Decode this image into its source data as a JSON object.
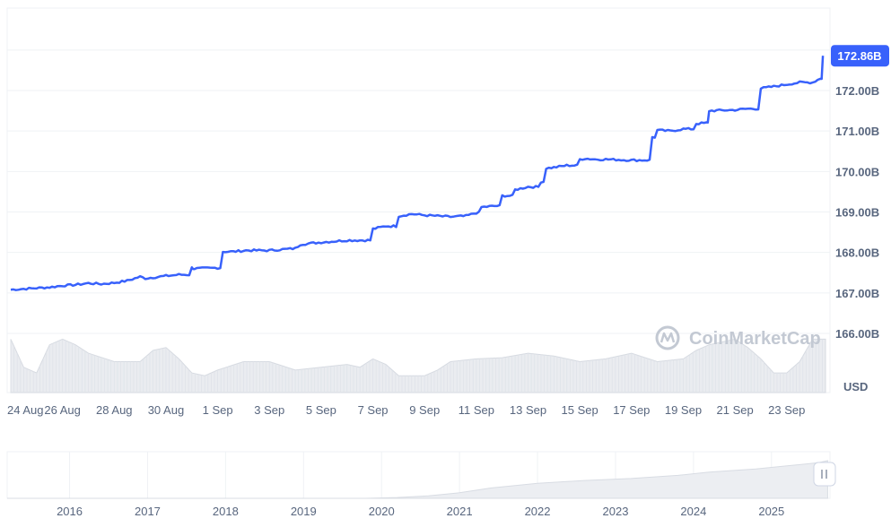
{
  "chart_data": [
    {
      "type": "line",
      "title": "",
      "unit": "USD",
      "ylim": [
        165.4,
        173.2
      ],
      "y_ticks": [
        {
          "value": 166,
          "label": "166.00B"
        },
        {
          "value": 167,
          "label": "167.00B"
        },
        {
          "value": 168,
          "label": "168.00B"
        },
        {
          "value": 169,
          "label": "169.00B"
        },
        {
          "value": 170,
          "label": "170.00B"
        },
        {
          "value": 171,
          "label": "171.00B"
        },
        {
          "value": 172,
          "label": "172.00B"
        }
      ],
      "x_ticks": [
        "24 Aug",
        "26 Aug",
        "28 Aug",
        "30 Aug",
        "1 Sep",
        "3 Sep",
        "5 Sep",
        "7 Sep",
        "9 Sep",
        "11 Sep",
        "13 Sep",
        "15 Sep",
        "17 Sep",
        "19 Sep",
        "21 Sep",
        "23 Sep"
      ],
      "xlim_days": [
        0,
        31.5
      ],
      "current_value": 172.86,
      "current_label": "172.86B",
      "grid": true,
      "line_color": "#3861fb",
      "series": [
        {
          "x_days": [
            0,
            0.5,
            1,
            1.5,
            2,
            2.5,
            3,
            3.5,
            4,
            4.5,
            5,
            5.2,
            6,
            6.5,
            7,
            7.1,
            8,
            8.2,
            8.6,
            9.1,
            10,
            11,
            11.2,
            12,
            13,
            14,
            14.5,
            15,
            15.5,
            16,
            16.5,
            17,
            17.6,
            18,
            18.2,
            18.8,
            19,
            19.5,
            20,
            20.5,
            20.7,
            21,
            21.5,
            22,
            22.2,
            22.6,
            23,
            24,
            24.5,
            24.8,
            25,
            25.5,
            26,
            26.5,
            26.9,
            27,
            28,
            28.5,
            29,
            29.5,
            30,
            30.5,
            31,
            31.3,
            31.4
          ],
          "values": [
            167.08,
            167.1,
            167.12,
            167.14,
            167.18,
            167.2,
            167.24,
            167.22,
            167.25,
            167.3,
            167.4,
            167.36,
            167.42,
            167.45,
            167.62,
            167.6,
            167.62,
            168.02,
            168.02,
            168.05,
            168.05,
            168.1,
            168.2,
            168.25,
            168.3,
            168.58,
            168.65,
            168.9,
            168.95,
            168.92,
            168.9,
            168.88,
            168.9,
            168.98,
            169.12,
            169.15,
            169.4,
            169.55,
            169.62,
            169.75,
            170.08,
            170.1,
            170.15,
            170.3,
            170.32,
            170.3,
            170.3,
            170.28,
            170.28,
            170.85,
            171.02,
            171.0,
            171.05,
            171.18,
            171.2,
            171.5,
            171.52,
            171.55,
            172.05,
            172.1,
            172.15,
            172.2,
            172.2,
            172.3,
            172.86
          ]
        }
      ],
      "volume_area": {
        "x_days": [
          0,
          0.5,
          1,
          1.5,
          2,
          2.5,
          3,
          4,
          5,
          5.5,
          6,
          6.5,
          7,
          7.5,
          8,
          9,
          10,
          11,
          12,
          13,
          13.5,
          14,
          14.5,
          15,
          16,
          16.5,
          17,
          18,
          19,
          20,
          21,
          22,
          23,
          24,
          25,
          26,
          26.5,
          27,
          28,
          28.5,
          29,
          29.5,
          30,
          30.5,
          31,
          31.5
        ],
        "level": [
          0.95,
          0.45,
          0.35,
          0.85,
          0.95,
          0.85,
          0.7,
          0.55,
          0.55,
          0.75,
          0.8,
          0.6,
          0.35,
          0.3,
          0.4,
          0.55,
          0.55,
          0.4,
          0.45,
          0.5,
          0.45,
          0.6,
          0.5,
          0.3,
          0.3,
          0.4,
          0.55,
          0.6,
          0.62,
          0.7,
          0.65,
          0.55,
          0.6,
          0.7,
          0.55,
          0.6,
          0.75,
          0.85,
          0.95,
          0.8,
          0.6,
          0.35,
          0.35,
          0.55,
          0.95,
          0.95
        ]
      }
    },
    {
      "type": "area",
      "title": "",
      "x_ticks": [
        "2016",
        "2017",
        "2018",
        "2019",
        "2020",
        "2021",
        "2022",
        "2023",
        "2024",
        "2025"
      ],
      "xlim": [
        2015.2,
        2025.75
      ],
      "ylim": [
        0,
        1
      ],
      "x": [
        2015.2,
        2019.8,
        2020.2,
        2020.6,
        2021.0,
        2021.4,
        2022.0,
        2022.6,
        2023.2,
        2023.8,
        2024.2,
        2024.8,
        2025.2,
        2025.6,
        2025.72
      ],
      "values": [
        0,
        0,
        0.02,
        0.06,
        0.14,
        0.26,
        0.38,
        0.45,
        0.5,
        0.58,
        0.66,
        0.74,
        0.82,
        0.9,
        0.95
      ],
      "grid": true
    }
  ],
  "watermark": {
    "text": "CoinMarketCap",
    "icon": "coinmarketcap-logo-icon"
  },
  "range_handle": {
    "icon": "grip-lines-icon"
  }
}
